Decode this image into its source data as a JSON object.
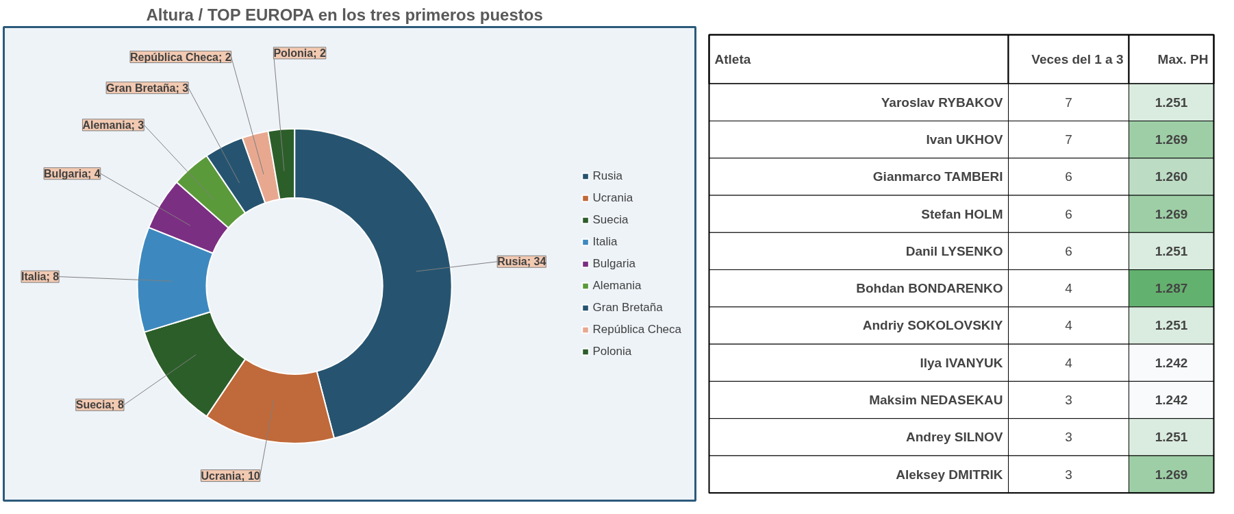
{
  "chart_data": [
    {
      "type": "donut",
      "title": "Altura / TOP   EUROPA en los tres primeros puestos",
      "categories": [
        "Rusia",
        "Ucrania",
        "Suecia",
        "Italia",
        "Bulgaria",
        "Alemania",
        "Gran Bretaña",
        "República Checa",
        "Polonia"
      ],
      "values": [
        34,
        10,
        8,
        8,
        4,
        3,
        3,
        2,
        2
      ],
      "colors": [
        "#265470",
        "#c0693a",
        "#2c5e2a",
        "#3d89bf",
        "#7b2f82",
        "#5b9a3a",
        "#265470",
        "#e8a890",
        "#2c5e2a"
      ],
      "value_labels": [
        "Rusia; 34",
        "Ucrania; 10",
        "Suecia; 8",
        "Italia; 8",
        "Bulgaria; 4",
        "Alemania; 3",
        "Gran Bretaña; 3",
        "República Checa; 2",
        "Polonia; 2"
      ],
      "legend": "right"
    },
    {
      "type": "heatmap",
      "ylabel": "Atleta",
      "categories": [
        "Veces del 1 a 3",
        "Max. PH"
      ],
      "y_categories": [
        "Yaroslav RYBAKOV",
        "Ivan UKHOV",
        "Gianmarco TAMBERI",
        "Stefan HOLM",
        "Danil LYSENKO",
        "Bohdan BONDARENKO",
        "Andriy SOKOLOVSKIY",
        "Ilya IVANYUK",
        "Maksim NEDASEKAU",
        "Andrey SILNOV",
        "Aleksey DMITRIK"
      ],
      "cells": [
        [
          7,
          1.251
        ],
        [
          7,
          1.269
        ],
        [
          6,
          1.26
        ],
        [
          6,
          1.269
        ],
        [
          6,
          1.251
        ],
        [
          4,
          1.287
        ],
        [
          4,
          1.251
        ],
        [
          4,
          1.242
        ],
        [
          3,
          1.242
        ],
        [
          3,
          1.251
        ],
        [
          3,
          1.269
        ]
      ],
      "cell_labels": [
        [
          "7",
          "1.251"
        ],
        [
          "7",
          "1.269"
        ],
        [
          "6",
          "1.260"
        ],
        [
          "6",
          "1.269"
        ],
        [
          "6",
          "1.251"
        ],
        [
          "4",
          "1.287"
        ],
        [
          "4",
          "1.251"
        ],
        [
          "4",
          "1.242"
        ],
        [
          "3",
          "1.242"
        ],
        [
          "3",
          "1.251"
        ],
        [
          "3",
          "1.269"
        ]
      ]
    }
  ]
}
